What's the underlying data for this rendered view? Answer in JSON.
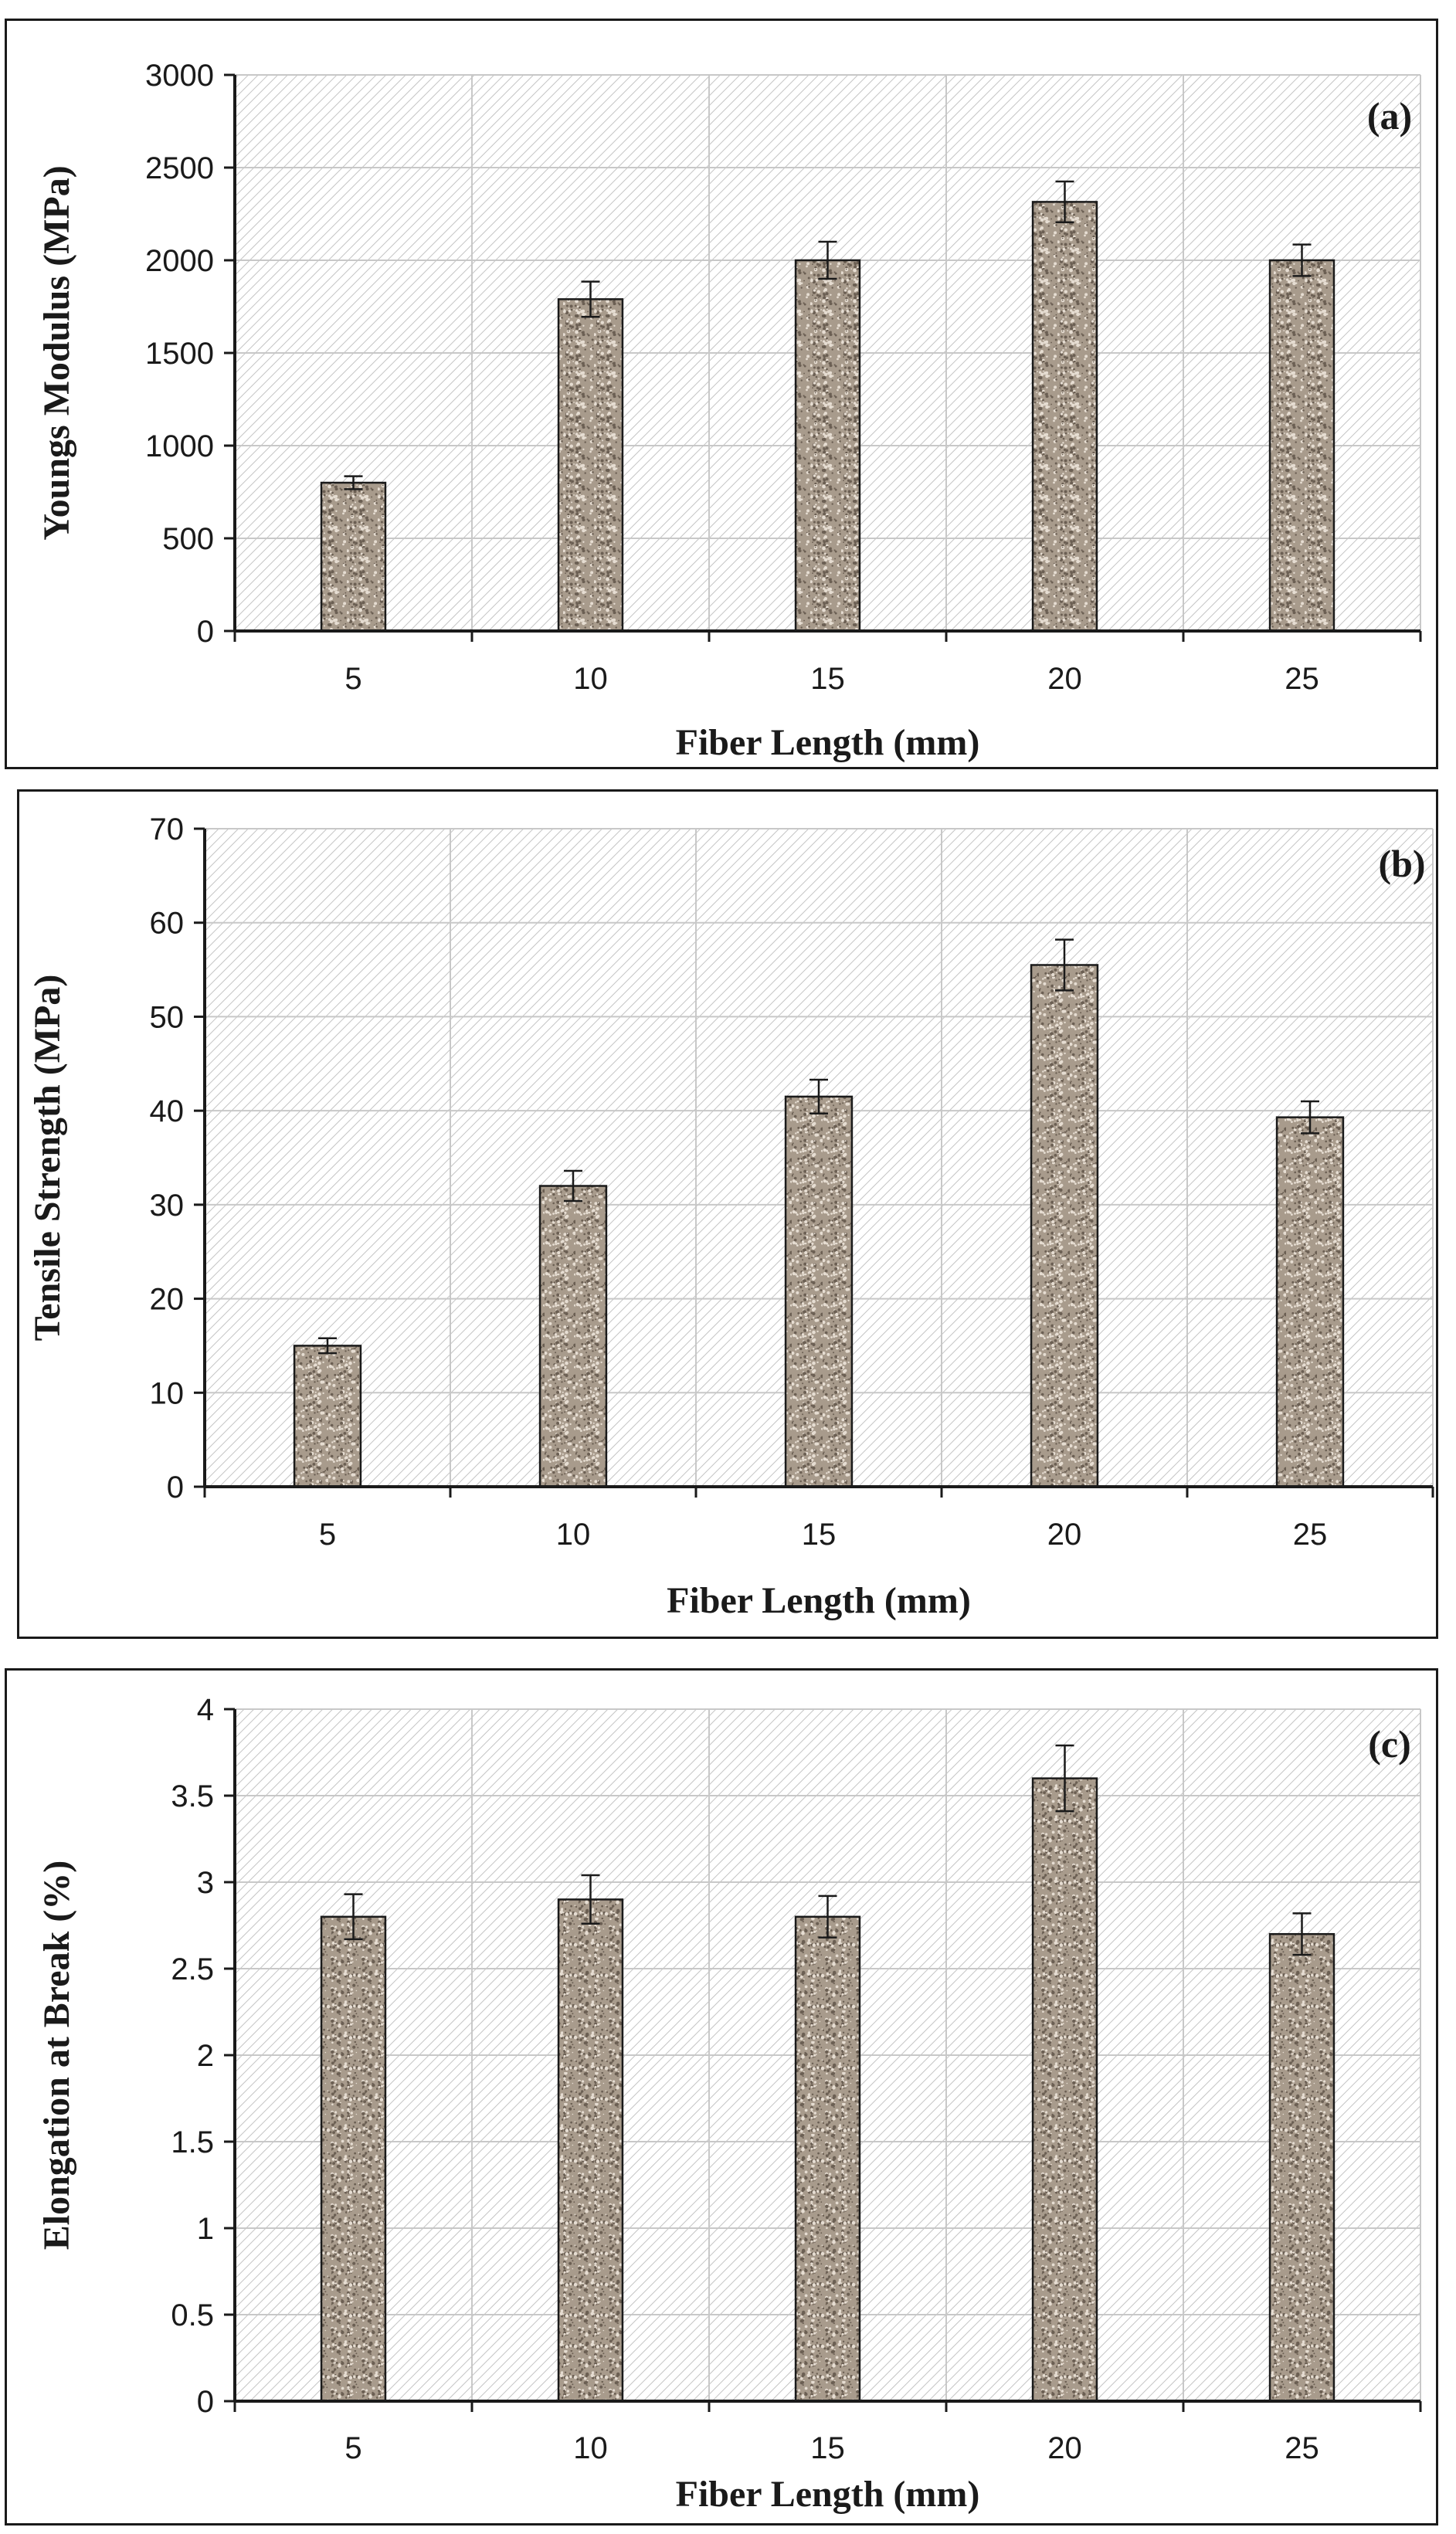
{
  "chart_data": [
    {
      "type": "bar",
      "panel_label": "(a)",
      "categories": [
        "5",
        "10",
        "15",
        "20",
        "25"
      ],
      "values": [
        800,
        1790,
        2000,
        2315,
        2000
      ],
      "errors": [
        35,
        95,
        100,
        110,
        85
      ],
      "xlabel": "Fiber Length (mm)",
      "ylabel": "Youngs  Modulus (MPa)",
      "ylim": [
        0,
        3000
      ],
      "yticks": [
        0,
        500,
        1000,
        1500,
        2000,
        2500,
        3000
      ],
      "grid": true,
      "legend": "none"
    },
    {
      "type": "bar",
      "panel_label": "(b)",
      "categories": [
        "5",
        "10",
        "15",
        "20",
        "25"
      ],
      "values": [
        15,
        32,
        41.5,
        55.5,
        39.3
      ],
      "errors": [
        0.8,
        1.6,
        1.8,
        2.7,
        1.7
      ],
      "xlabel": "Fiber Length (mm)",
      "ylabel": "Tensile Strength  (MPa)",
      "ylim": [
        0,
        70
      ],
      "yticks": [
        0,
        10,
        20,
        30,
        40,
        50,
        60,
        70
      ],
      "grid": true,
      "legend": "none"
    },
    {
      "type": "bar",
      "panel_label": "(c)",
      "categories": [
        "5",
        "10",
        "15",
        "20",
        "25"
      ],
      "values": [
        2.8,
        2.9,
        2.8,
        3.6,
        2.7
      ],
      "errors": [
        0.13,
        0.14,
        0.12,
        0.19,
        0.12
      ],
      "xlabel": "Fiber Length (mm)",
      "ylabel": "Elongation  at Break (%)",
      "ylim": [
        0,
        4
      ],
      "yticks": [
        0,
        0.5,
        1,
        1.5,
        2,
        2.5,
        3,
        3.5,
        4
      ],
      "grid": true,
      "legend": "none"
    }
  ],
  "colors": {
    "bar_fill": "#a89b8c",
    "bar_speckle_dark": "#6b5f53",
    "bar_speckle_light": "#e6ddd2",
    "axis": "#1a1a1a",
    "grid": "#c8c8c8",
    "hatch": "#c4c4c4"
  }
}
